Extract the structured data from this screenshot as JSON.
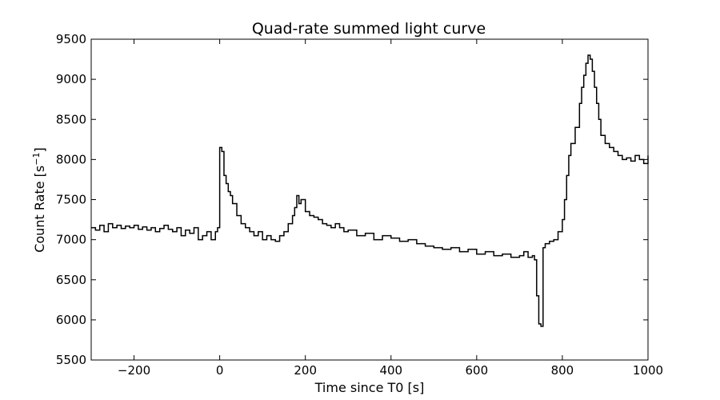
{
  "chart_data": {
    "type": "line",
    "style": "step",
    "title": "Quad-rate summed light curve",
    "xlabel": "Time since T0 [s]",
    "ylabel_main": "Count Rate [s",
    "ylabel_sup": "−1",
    "ylabel_end": "]",
    "xlim": [
      -300,
      1000
    ],
    "ylim": [
      5500,
      9500
    ],
    "x_ticks": [
      -200,
      0,
      200,
      400,
      600,
      800,
      1000
    ],
    "x_tick_labels": [
      "−200",
      "0",
      "200",
      "400",
      "600",
      "800",
      "1000"
    ],
    "y_ticks": [
      5500,
      6000,
      6500,
      7000,
      7500,
      8000,
      8500,
      9000,
      9500
    ],
    "y_tick_labels": [
      "5500",
      "6000",
      "6500",
      "7000",
      "7500",
      "8000",
      "8500",
      "9000",
      "9500"
    ],
    "grid": false,
    "line_color": "#000000",
    "series": [
      {
        "x": [
          -300,
          -290,
          -280,
          -270,
          -260,
          -250,
          -240,
          -230,
          -220,
          -210,
          -200,
          -190,
          -180,
          -170,
          -160,
          -150,
          -140,
          -130,
          -120,
          -110,
          -100,
          -90,
          -80,
          -70,
          -60,
          -50,
          -40,
          -30,
          -20,
          -10,
          -5,
          0,
          5,
          10,
          15,
          20,
          25,
          30,
          40,
          50,
          60,
          70,
          80,
          90,
          100,
          110,
          120,
          130,
          140,
          150,
          160,
          170,
          175,
          180,
          185,
          190,
          200,
          210,
          220,
          230,
          240,
          250,
          260,
          270,
          280,
          290,
          300,
          320,
          340,
          360,
          380,
          400,
          420,
          440,
          460,
          480,
          500,
          520,
          540,
          560,
          580,
          600,
          620,
          640,
          660,
          680,
          700,
          710,
          720,
          730,
          735,
          740,
          745,
          750,
          755,
          760,
          770,
          780,
          790,
          800,
          805,
          810,
          815,
          820,
          830,
          840,
          845,
          850,
          855,
          860,
          865,
          870,
          875,
          880,
          885,
          890,
          900,
          910,
          920,
          930,
          940,
          950,
          960,
          970,
          980,
          990,
          1000
        ],
        "y": [
          7150,
          7120,
          7180,
          7100,
          7200,
          7150,
          7180,
          7140,
          7170,
          7150,
          7180,
          7130,
          7160,
          7120,
          7150,
          7100,
          7140,
          7180,
          7130,
          7100,
          7150,
          7050,
          7120,
          7080,
          7150,
          7000,
          7050,
          7100,
          7000,
          7100,
          7150,
          8150,
          8100,
          7800,
          7700,
          7600,
          7550,
          7450,
          7300,
          7200,
          7150,
          7100,
          7050,
          7100,
          7000,
          7050,
          7000,
          6980,
          7050,
          7100,
          7200,
          7300,
          7400,
          7550,
          7450,
          7500,
          7350,
          7300,
          7280,
          7250,
          7200,
          7180,
          7150,
          7200,
          7150,
          7100,
          7120,
          7050,
          7080,
          7000,
          7050,
          7020,
          6980,
          7000,
          6950,
          6920,
          6900,
          6880,
          6900,
          6850,
          6880,
          6820,
          6850,
          6800,
          6820,
          6780,
          6800,
          6850,
          6780,
          6800,
          6750,
          6300,
          5950,
          5920,
          6900,
          6950,
          6980,
          7000,
          7100,
          7250,
          7500,
          7800,
          8050,
          8200,
          8400,
          8700,
          8900,
          9050,
          9200,
          9300,
          9250,
          9100,
          8900,
          8700,
          8500,
          8300,
          8200,
          8150,
          8100,
          8050,
          8000,
          8020,
          7980,
          8050,
          8000,
          7950,
          8050
        ]
      }
    ]
  }
}
